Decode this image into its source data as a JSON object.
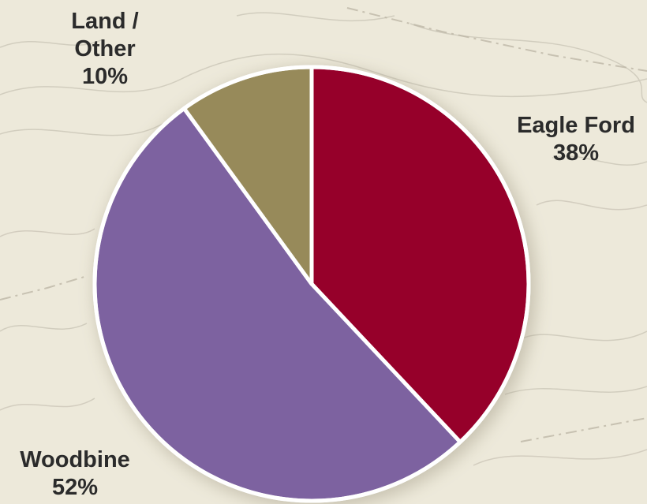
{
  "chart_data": {
    "type": "pie",
    "title": "",
    "slices": [
      {
        "label": "Eagle Ford",
        "value": 38,
        "value_label": "38%",
        "color": "#96002a"
      },
      {
        "label": "Woodbine",
        "value": 52,
        "value_label": "52%",
        "color": "#7d62a0"
      },
      {
        "label": "Land / Other",
        "label_lines": [
          "Land /",
          "Other"
        ],
        "value": 10,
        "value_label": "10%",
        "color": "#978a5a"
      }
    ],
    "start_angle_deg": 0,
    "direction": "clockwise",
    "legend": "none",
    "labels": "outside"
  },
  "colors": {
    "background": "#ede9da",
    "map_lines": "#cfcabb",
    "slice_border": "#ffffff",
    "label_text": "#2b2b2b"
  }
}
